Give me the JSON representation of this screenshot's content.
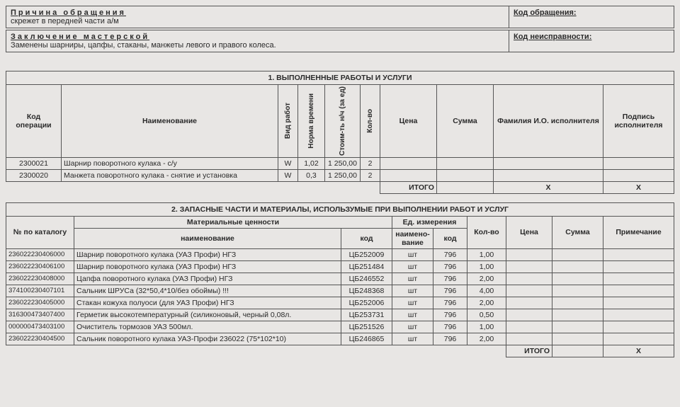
{
  "header": {
    "reason_label": "Причина обращения",
    "reason_text": "скрежет в передней части а/м",
    "code_label": "Код обращения:",
    "conclusion_label": "Заключение мастерской",
    "conclusion_text": "Заменены шарниры, цапфы, стаканы, манжеты левого и правого колеса.",
    "malfunction_label": "Код неисправности:"
  },
  "works": {
    "title": "1. ВЫПОЛНЕННЫЕ РАБОТЫ И УСЛУГИ",
    "cols": {
      "op": "Код операции",
      "name": "Наименование",
      "type": "Вид работ",
      "norm": "Норма времени",
      "cost": "Стоим-ть н/ч (за ед)",
      "qty": "Кол-во",
      "price": "Цена",
      "sum": "Сумма",
      "fio": "Фамилия И.О. исполнителя",
      "sign": "Подпись исполнителя"
    },
    "rows": [
      {
        "op": "2300021",
        "name": "Шарнир поворотного кулака - с/у",
        "type": "W",
        "norm": "1,02",
        "cost": "1 250,00",
        "qty": "2"
      },
      {
        "op": "2300020",
        "name": "Манжета поворотного кулака - снятие и установка",
        "type": "W",
        "norm": "0,3",
        "cost": "1 250,00",
        "qty": "2"
      }
    ],
    "total_label": "ИТОГО",
    "x": "X"
  },
  "parts": {
    "title": "2. ЗАПАСНЫЕ ЧАСТИ И МАТЕРИАЛЫ, ИСПОЛЬЗУМЫЕ ПРИ ВЫПОЛНЕНИИ РАБОТ И УСЛУГ",
    "cols": {
      "catalog": "№ по каталогу",
      "material": "Материальные ценности",
      "name": "наименование",
      "code": "код",
      "unit": "Ед. измерения",
      "unit_name": "наимено-вание",
      "unit_code": "код",
      "qty": "Кол-во",
      "price": "Цена",
      "sum": "Сумма",
      "note": "Примечание"
    },
    "rows": [
      {
        "cat": "236022230406000",
        "name": "Шарнир поворотного кулака (УАЗ Профи) НГЗ",
        "code": "ЦБ252009",
        "un": "шт",
        "uc": "796",
        "qty": "1,00"
      },
      {
        "cat": "236022230406100",
        "name": "Шарнир поворотного кулака (УАЗ Профи) НГЗ",
        "code": "ЦБ251484",
        "un": "шт",
        "uc": "796",
        "qty": "1,00"
      },
      {
        "cat": "236022230408000",
        "name": "Цапфа поворотного кулака (УАЗ Профи) НГЗ",
        "code": "ЦБ246552",
        "un": "шт",
        "uc": "796",
        "qty": "2,00"
      },
      {
        "cat": "374100230407101",
        "name": "Сальник ШРУСа  (32*50,4*10/без обоймы) !!!",
        "code": "ЦБ248368",
        "un": "шт",
        "uc": "796",
        "qty": "4,00"
      },
      {
        "cat": "236022230405000",
        "name": "Стакан кожуха полуоси (для УАЗ Профи) НГЗ",
        "code": "ЦБ252006",
        "un": "шт",
        "uc": "796",
        "qty": "2,00"
      },
      {
        "cat": "316300473407400",
        "name": "Герметик высокотемпературный (силиконовый, черный 0,08л.",
        "code": "ЦБ253731",
        "un": "шт",
        "uc": "796",
        "qty": "0,50"
      },
      {
        "cat": "000000473403100",
        "name": "Очиститель тормозов УАЗ 500мл.",
        "code": "ЦБ251526",
        "un": "шт",
        "uc": "796",
        "qty": "1,00"
      },
      {
        "cat": "236022230404500",
        "name": "Сальник поворотного кулака УАЗ-Профи 236022 (75*102*10)",
        "code": "ЦБ246865",
        "un": "шт",
        "uc": "796",
        "qty": "2,00"
      }
    ],
    "total_label": "ИТОГО",
    "x": "X"
  }
}
